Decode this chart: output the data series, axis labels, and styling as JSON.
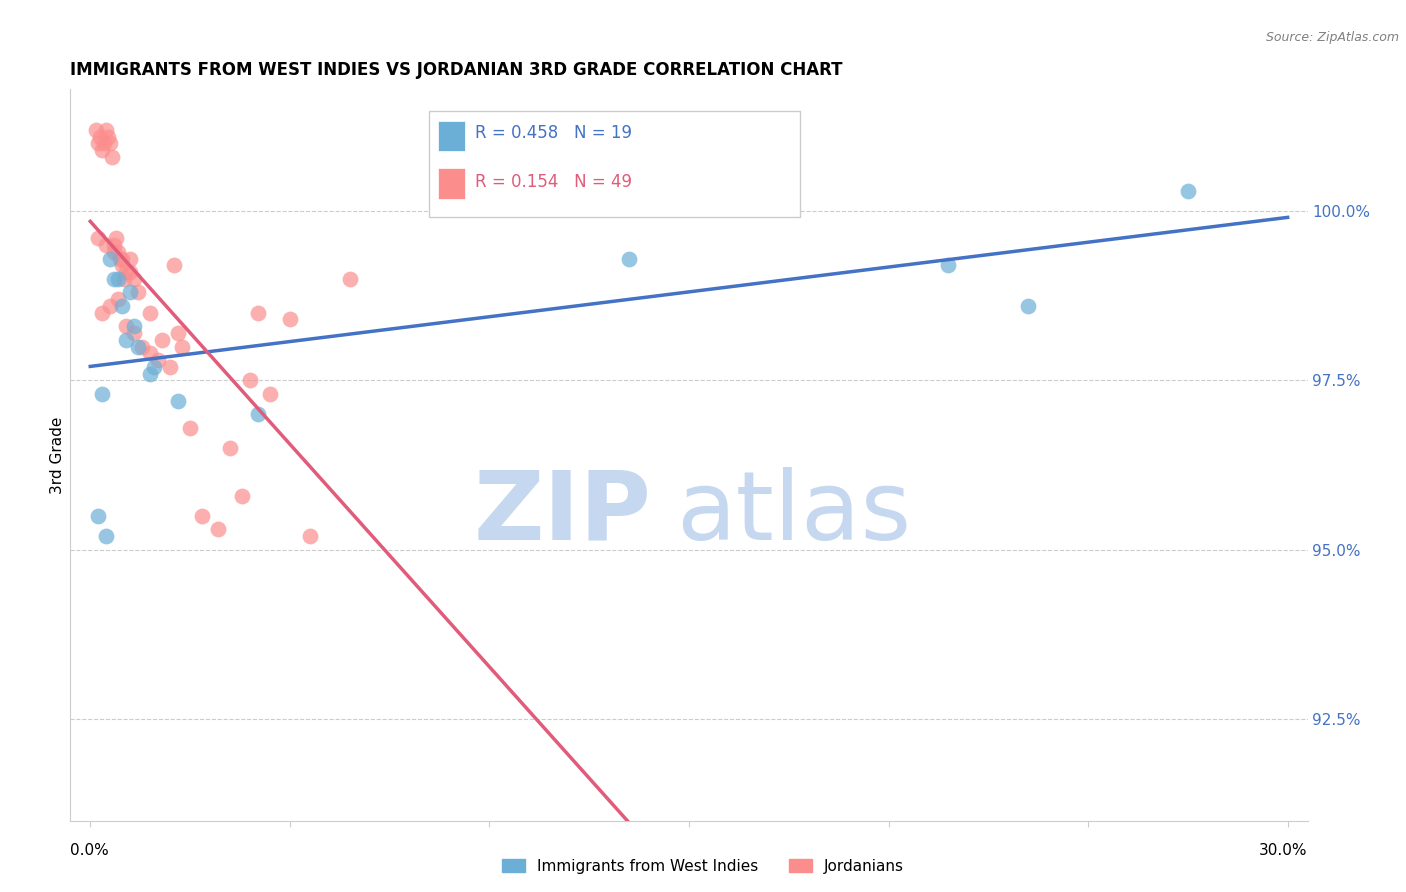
{
  "title": "IMMIGRANTS FROM WEST INDIES VS JORDANIAN 3RD GRADE CORRELATION CHART",
  "source": "Source: ZipAtlas.com",
  "ylabel": "3rd Grade",
  "right_yticks": [
    92.5,
    95.0,
    97.5,
    100.0
  ],
  "right_ytick_labels": [
    "92.5%",
    "95.0%",
    "97.5%",
    "100.0%"
  ],
  "xlim_min": -0.5,
  "xlim_max": 30.5,
  "ylim_min": 91.0,
  "ylim_max": 101.8,
  "legend_label1": "Immigrants from West Indies",
  "legend_label2": "Jordanians",
  "R1": 0.458,
  "N1": 19,
  "R2": 0.154,
  "N2": 49,
  "color1": "#6baed6",
  "color2": "#fc8d8d",
  "line_color1": "#4472c4",
  "line_color2": "#e05c7a",
  "watermark_zip": "ZIP",
  "watermark_atlas": "atlas",
  "watermark_color_zip": "#c5d8f0",
  "watermark_color_atlas": "#c5d8f0",
  "blue_x": [
    0.3,
    0.5,
    0.7,
    0.8,
    1.0,
    1.2,
    1.5,
    1.6,
    2.2,
    4.2,
    13.5,
    21.5,
    23.5,
    27.5,
    0.2,
    0.4,
    0.9,
    0.6,
    1.1
  ],
  "blue_y": [
    97.3,
    99.3,
    99.0,
    98.6,
    98.8,
    98.0,
    97.6,
    97.7,
    97.2,
    97.0,
    99.3,
    99.2,
    98.6,
    100.3,
    95.5,
    95.2,
    98.1,
    99.0,
    98.3
  ],
  "pink_x": [
    0.15,
    0.2,
    0.25,
    0.3,
    0.35,
    0.4,
    0.45,
    0.5,
    0.55,
    0.6,
    0.65,
    0.7,
    0.75,
    0.8,
    0.85,
    0.9,
    1.0,
    1.1,
    1.2,
    1.5,
    1.7,
    2.0,
    2.1,
    2.3,
    2.5,
    3.5,
    3.8,
    4.0,
    4.5,
    5.5,
    0.3,
    0.5,
    0.7,
    0.9,
    1.1,
    1.3,
    1.5,
    1.8,
    2.2,
    2.8,
    3.2,
    4.2,
    5.0,
    6.5,
    0.2,
    0.4,
    0.6,
    0.8,
    1.0
  ],
  "pink_y": [
    101.2,
    101.0,
    101.1,
    100.9,
    101.0,
    101.2,
    101.1,
    101.0,
    100.8,
    99.5,
    99.6,
    99.4,
    99.3,
    99.2,
    99.0,
    99.1,
    99.3,
    99.0,
    98.8,
    98.5,
    97.8,
    97.7,
    99.2,
    98.0,
    96.8,
    96.5,
    95.8,
    97.5,
    97.3,
    95.2,
    98.5,
    98.6,
    98.7,
    98.3,
    98.2,
    98.0,
    97.9,
    98.1,
    98.2,
    95.5,
    95.3,
    98.5,
    98.4,
    99.0,
    99.6,
    99.5,
    99.4,
    99.3,
    99.1
  ]
}
